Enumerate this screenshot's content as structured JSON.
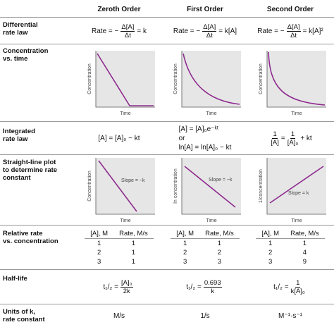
{
  "columns": [
    "Zeroth Order",
    "First Order",
    "Second Order"
  ],
  "rows": {
    "differential": {
      "label": [
        "Differential",
        "rate law"
      ],
      "cells": [
        {
          "lead": "Rate = −",
          "num": "Δ[A]",
          "den": "Δt",
          "tail": "= k"
        },
        {
          "lead": "Rate = −",
          "num": "Δ[A]",
          "den": "Δt",
          "tail": "= k[A]"
        },
        {
          "lead": "Rate = −",
          "num": "Δ[A]",
          "den": "Δt",
          "tail": "= k[A]²"
        }
      ]
    },
    "concentration_time": {
      "label": [
        "Concentration",
        "vs. time"
      ],
      "cells": [
        {
          "y_axis": "Concentration",
          "x_axis": "Time"
        },
        {
          "y_axis": "Concentration",
          "x_axis": "Time"
        },
        {
          "y_axis": "Concentration",
          "x_axis": "Time"
        }
      ]
    },
    "integrated": {
      "label": [
        "Integrated",
        "rate law"
      ],
      "cells": [
        {
          "text": "[A] = [A]₀ − kt"
        },
        {
          "lines": [
            "[A] = [A]₀e⁻ᵏᵗ",
            "or",
            "ln[A] = ln[A]₀ − kt"
          ]
        },
        {
          "num1": "1",
          "den1": "[A]",
          "mid": "=",
          "num2": "1",
          "den2": "[A]₀",
          "tail": "+ kt"
        }
      ]
    },
    "straight_line": {
      "label": [
        "Straight-line plot",
        "to determine rate",
        "constant"
      ],
      "cells": [
        {
          "y_axis": "Concentration",
          "x_axis": "Time",
          "slope": "Slope = −k"
        },
        {
          "y_axis": "ln concentration",
          "x_axis": "Time",
          "slope": "Slope = −k"
        },
        {
          "y_axis": "1/concentration",
          "x_axis": "Time",
          "slope": "Slope = k"
        }
      ]
    },
    "relative_rate": {
      "label": [
        "Relative rate",
        "vs. concentration"
      ],
      "cells": [
        {
          "headers": [
            "[A], M",
            "Rate, M/s"
          ],
          "rows": [
            [
              1,
              1
            ],
            [
              2,
              1
            ],
            [
              3,
              1
            ]
          ]
        },
        {
          "headers": [
            "[A], M",
            "Rate, M/s"
          ],
          "rows": [
            [
              1,
              1
            ],
            [
              2,
              2
            ],
            [
              3,
              3
            ]
          ]
        },
        {
          "headers": [
            "[A], M",
            "Rate, M/s"
          ],
          "rows": [
            [
              1,
              1
            ],
            [
              2,
              4
            ],
            [
              3,
              9
            ]
          ]
        }
      ]
    },
    "half_life": {
      "label": [
        "Half-life"
      ],
      "cells": [
        {
          "lead": "t₁/₂ =",
          "num": "[A]₀",
          "den": "2k"
        },
        {
          "lead": "t₁/₂ =",
          "num": "0.693",
          "den": "k"
        },
        {
          "lead": "t₁/₂ =",
          "num": "1",
          "den": "k[A]₀"
        }
      ]
    },
    "units": {
      "label": [
        "Units of k,",
        "rate constant"
      ],
      "cells": [
        {
          "text": "M/s"
        },
        {
          "text": "1/s"
        },
        {
          "text": "M⁻¹·s⁻¹"
        }
      ]
    }
  }
}
